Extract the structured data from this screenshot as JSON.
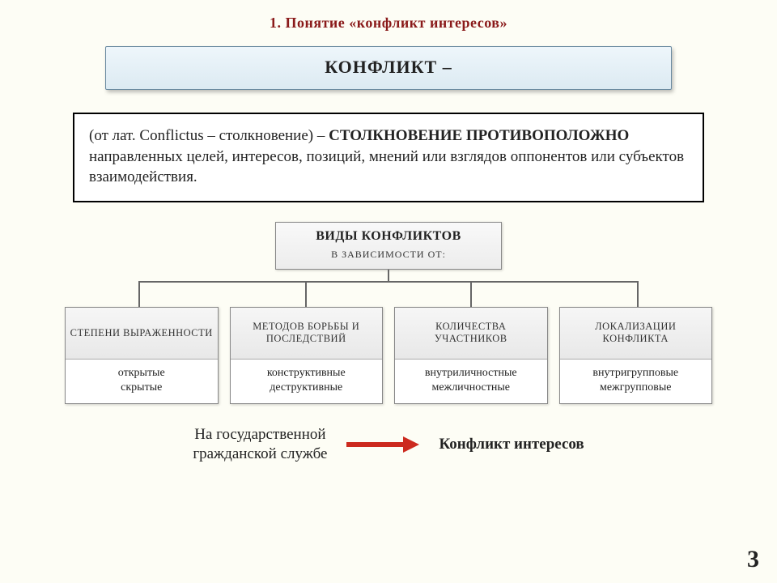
{
  "heading": "1. Понятие «конфликт интересов»",
  "title": "КОНФЛИКТ –",
  "definition": {
    "pre": "(от лат. Conflictus – столкновение) – ",
    "bold1": "СТОЛКНОВЕНИЕ ПРОТИВОПОЛОЖНО",
    "post": " направленных целей, интересов, позиций, мнений или взглядов оппонентов или субъектов взаимодействия."
  },
  "tree": {
    "root_line1": "ВИДЫ КОНФЛИКТОВ",
    "root_line2": "В ЗАВИСИМОСТИ ОТ:",
    "branches": [
      {
        "head": "СТЕПЕНИ ВЫРАЖЕННОСТИ",
        "body": "открытые\nскрытые"
      },
      {
        "head": "МЕТОДОВ БОРЬБЫ И ПОСЛЕДСТВИЙ",
        "body": "конструктивные\nдеструктивные"
      },
      {
        "head": "КОЛИЧЕСТВА УЧАСТНИКОВ",
        "body": "внутриличностные\nмежличностные"
      },
      {
        "head": "ЛОКАЛИЗАЦИИ КОНФЛИКТА",
        "body": "внутригрупповые\nмежгрупповые"
      }
    ],
    "connector": {
      "left_pct": 11.5,
      "right_pct": 88.5,
      "mids_pct": [
        11.5,
        37.2,
        62.8,
        88.5
      ],
      "color": "#666666"
    }
  },
  "footer": {
    "left": "На государственной\nгражданской службе",
    "right": "Конфликт интересов",
    "arrow_color": "#cc2a1f"
  },
  "page_number": "3",
  "colors": {
    "heading": "#8a1a1a",
    "background": "#fdfdf5",
    "titlebox_bg_top": "#eef6fb",
    "titlebox_bg_bottom": "#dceaf2",
    "titlebox_border": "#6a8aa0",
    "box_border": "#000000",
    "branch_border": "#888888",
    "branch_head_bg_top": "#f6f6f6",
    "branch_head_bg_bottom": "#e8e8e8"
  },
  "fonts": {
    "heading_size_pt": 14,
    "title_size_pt": 17,
    "def_size_pt": 14,
    "branch_head_size_pt": 9,
    "branch_body_size_pt": 11,
    "footer_size_pt": 14,
    "page_num_size_pt": 22
  }
}
